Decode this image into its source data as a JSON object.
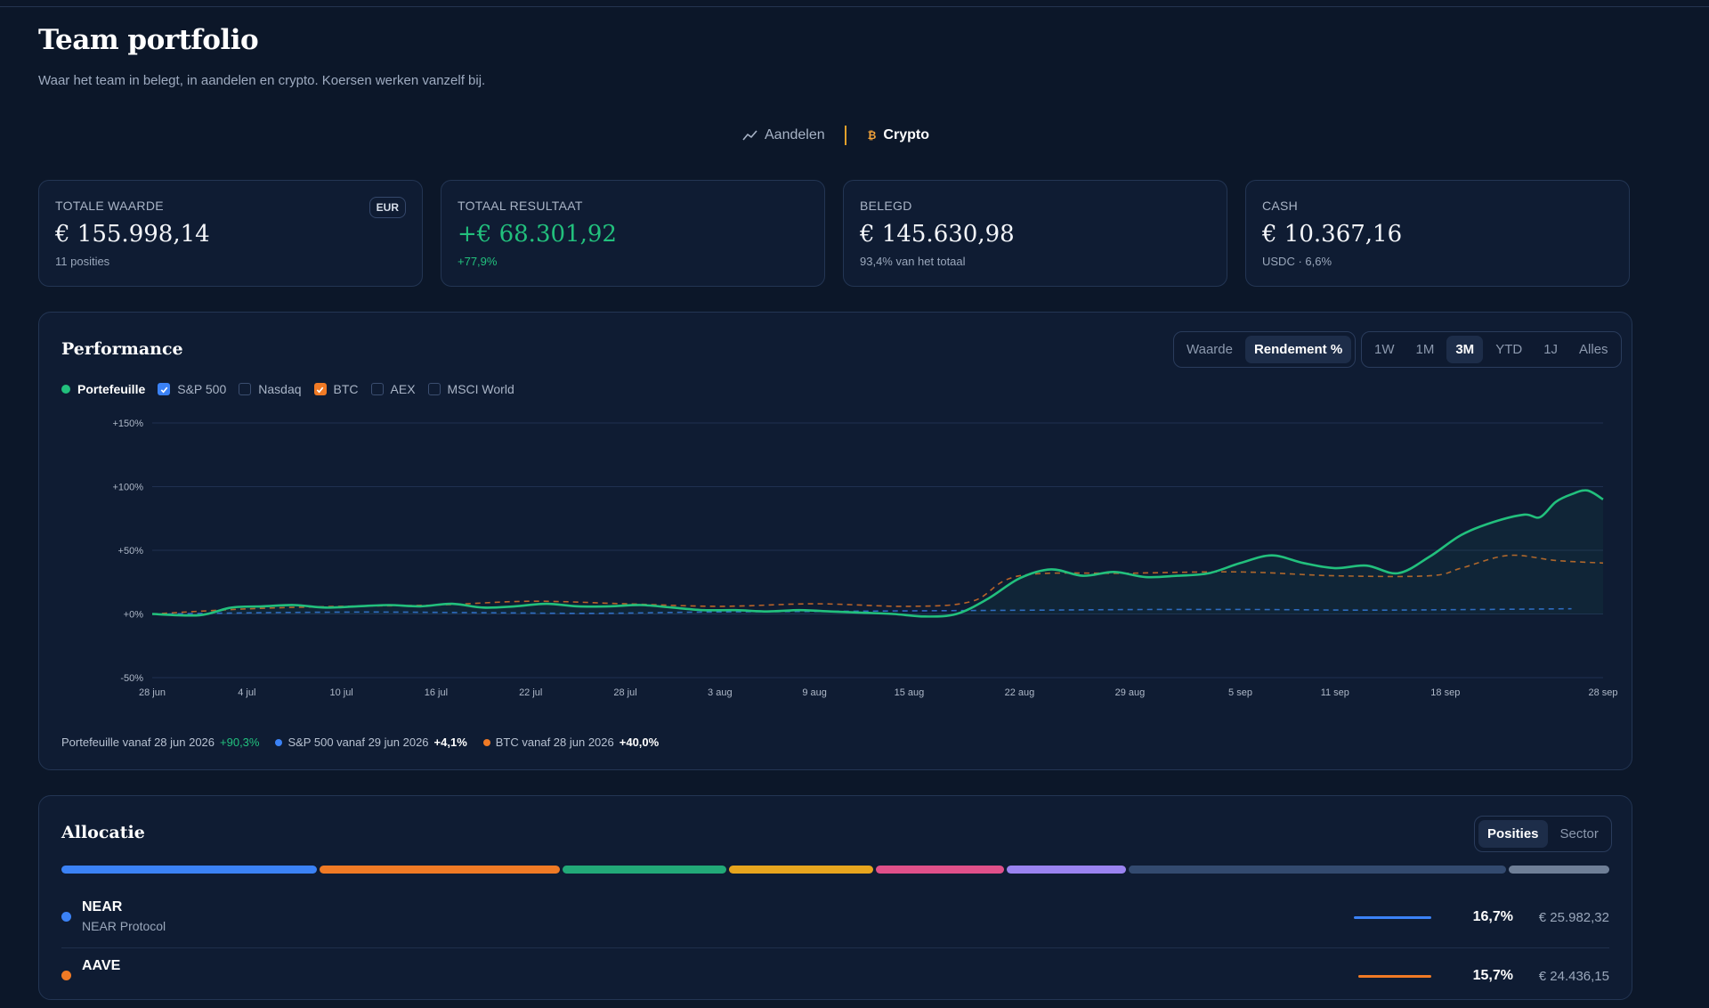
{
  "header": {
    "title": "Team portfolio",
    "subtitle": "Waar het team in belegt, in aandelen en crypto. Koersen werken vanzelf bij."
  },
  "switch": {
    "aandelen": "Aandelen",
    "crypto": "Crypto",
    "active": "Crypto"
  },
  "cards": [
    {
      "label": "TOTALE WAARDE",
      "value": "€ 155.998,14",
      "sub": "11 posities",
      "badge": "EUR"
    },
    {
      "label": "TOTAAL RESULTAAT",
      "value": "+€ 68.301,92",
      "sub": "+77,9%"
    },
    {
      "label": "BELEGD",
      "value": "€ 145.630,98",
      "sub": "93,4% van het totaal"
    },
    {
      "label": "CASH",
      "value": "€ 10.367,16",
      "sub": "USDC · 6,6%"
    }
  ],
  "performance": {
    "title": "Performance",
    "mode_options": [
      "Waarde",
      "Rendement %"
    ],
    "mode_active": "Rendement %",
    "range_options": [
      "1W",
      "1M",
      "3M",
      "YTD",
      "1J",
      "Alles"
    ],
    "range_active": "3M",
    "legend": [
      {
        "label": "Portefeuille",
        "type": "dot",
        "checked": true,
        "color": "#22c07d"
      },
      {
        "label": "S&P 500",
        "type": "checkbox",
        "checked": true,
        "color": "#3b82f6"
      },
      {
        "label": "Nasdaq",
        "type": "checkbox",
        "checked": false
      },
      {
        "label": "BTC",
        "type": "checkbox",
        "checked": true,
        "color": "#f07a25"
      },
      {
        "label": "AEX",
        "type": "checkbox",
        "checked": false
      },
      {
        "label": "MSCI World",
        "type": "checkbox",
        "checked": false
      }
    ],
    "footer": [
      {
        "text": "Portefeuille vanaf 28 jun 2026",
        "value": "+90,3%",
        "color": "#22c07d",
        "dot": false
      },
      {
        "text": "S&P 500 vanaf 29 jun 2026",
        "value": "+4,1%",
        "color": "#3b82f6",
        "dot": true
      },
      {
        "text": "BTC vanaf 28 jun 2026",
        "value": "+40,0%",
        "color": "#f07a25",
        "dot": true
      }
    ]
  },
  "chart_data": {
    "type": "line",
    "ylim": [
      -50,
      150
    ],
    "yticks": [
      -50,
      0,
      50,
      100,
      150
    ],
    "ytick_labels": [
      "-50%",
      "+0%",
      "+50%",
      "+100%",
      "+150%"
    ],
    "xlim": [
      "2026-06-28",
      "2026-09-28"
    ],
    "xtick_labels": [
      {
        "label": "28 jun",
        "date": "2026-06-28"
      },
      {
        "label": "4 jul",
        "date": "2026-07-04"
      },
      {
        "label": "10 jul",
        "date": "2026-07-10"
      },
      {
        "label": "16 jul",
        "date": "2026-07-16"
      },
      {
        "label": "22 jul",
        "date": "2026-07-22"
      },
      {
        "label": "28 jul",
        "date": "2026-07-28"
      },
      {
        "label": "3 aug",
        "date": "2026-08-03"
      },
      {
        "label": "9 aug",
        "date": "2026-08-09"
      },
      {
        "label": "15 aug",
        "date": "2026-08-15"
      },
      {
        "label": "22 aug",
        "date": "2026-08-22"
      },
      {
        "label": "29 aug",
        "date": "2026-08-29"
      },
      {
        "label": "5 sep",
        "date": "2026-09-05"
      },
      {
        "label": "11 sep",
        "date": "2026-09-11"
      },
      {
        "label": "18 sep",
        "date": "2026-09-18"
      },
      {
        "label": "28 sep",
        "date": "2026-09-28"
      }
    ],
    "grid": true,
    "series": [
      {
        "name": "Portefeuille",
        "color": "#22c07d",
        "style": "solid",
        "points": [
          [
            "2026-06-28",
            0
          ],
          [
            "2026-07-01",
            -1
          ],
          [
            "2026-07-03",
            5
          ],
          [
            "2026-07-05",
            6
          ],
          [
            "2026-07-07",
            7
          ],
          [
            "2026-07-09",
            5
          ],
          [
            "2026-07-11",
            6
          ],
          [
            "2026-07-13",
            7
          ],
          [
            "2026-07-15",
            6
          ],
          [
            "2026-07-17",
            8
          ],
          [
            "2026-07-19",
            5
          ],
          [
            "2026-07-21",
            6
          ],
          [
            "2026-07-23",
            8
          ],
          [
            "2026-07-25",
            6
          ],
          [
            "2026-07-27",
            6
          ],
          [
            "2026-07-29",
            7
          ],
          [
            "2026-07-31",
            5
          ],
          [
            "2026-08-02",
            3
          ],
          [
            "2026-08-04",
            3
          ],
          [
            "2026-08-06",
            2
          ],
          [
            "2026-08-08",
            3
          ],
          [
            "2026-08-10",
            2
          ],
          [
            "2026-08-12",
            1
          ],
          [
            "2026-08-14",
            0
          ],
          [
            "2026-08-16",
            -2
          ],
          [
            "2026-08-18",
            0
          ],
          [
            "2026-08-20",
            12
          ],
          [
            "2026-08-22",
            28
          ],
          [
            "2026-08-24",
            35
          ],
          [
            "2026-08-26",
            30
          ],
          [
            "2026-08-28",
            33
          ],
          [
            "2026-08-30",
            29
          ],
          [
            "2026-09-01",
            30
          ],
          [
            "2026-09-03",
            32
          ],
          [
            "2026-09-05",
            40
          ],
          [
            "2026-09-07",
            46
          ],
          [
            "2026-09-09",
            40
          ],
          [
            "2026-09-11",
            36
          ],
          [
            "2026-09-13",
            38
          ],
          [
            "2026-09-15",
            32
          ],
          [
            "2026-09-17",
            45
          ],
          [
            "2026-09-19",
            62
          ],
          [
            "2026-09-21",
            72
          ],
          [
            "2026-09-23",
            78
          ],
          [
            "2026-09-24",
            76
          ],
          [
            "2026-09-25",
            88
          ],
          [
            "2026-09-26",
            94
          ],
          [
            "2026-09-27",
            97
          ],
          [
            "2026-09-28",
            90
          ]
        ]
      },
      {
        "name": "S&P 500",
        "color": "#3b82f6",
        "style": "dashed",
        "points": [
          [
            "2026-06-29",
            0
          ],
          [
            "2026-07-05",
            1
          ],
          [
            "2026-07-12",
            1.5
          ],
          [
            "2026-07-19",
            1
          ],
          [
            "2026-07-26",
            0.5
          ],
          [
            "2026-08-02",
            1.5
          ],
          [
            "2026-08-09",
            2
          ],
          [
            "2026-08-16",
            2.5
          ],
          [
            "2026-08-23",
            3
          ],
          [
            "2026-08-30",
            3.5
          ],
          [
            "2026-09-06",
            3.5
          ],
          [
            "2026-09-13",
            3
          ],
          [
            "2026-09-20",
            3.5
          ],
          [
            "2026-09-26",
            4.1
          ]
        ]
      },
      {
        "name": "BTC",
        "color": "#f07a25",
        "style": "dashed",
        "points": [
          [
            "2026-06-28",
            0
          ],
          [
            "2026-07-04",
            4
          ],
          [
            "2026-07-10",
            6
          ],
          [
            "2026-07-16",
            7
          ],
          [
            "2026-07-22",
            10
          ],
          [
            "2026-07-28",
            8
          ],
          [
            "2026-08-03",
            6
          ],
          [
            "2026-08-09",
            8
          ],
          [
            "2026-08-15",
            6
          ],
          [
            "2026-08-19",
            10
          ],
          [
            "2026-08-22",
            30
          ],
          [
            "2026-08-29",
            32
          ],
          [
            "2026-09-05",
            33
          ],
          [
            "2026-09-11",
            30
          ],
          [
            "2026-09-17",
            30
          ],
          [
            "2026-09-19",
            36
          ],
          [
            "2026-09-22",
            46
          ],
          [
            "2026-09-25",
            42
          ],
          [
            "2026-09-28",
            40
          ]
        ]
      }
    ]
  },
  "allocation": {
    "title": "Allocatie",
    "options": [
      "Posities",
      "Sector"
    ],
    "active": "Posities",
    "segments": [
      {
        "pct": 16.7,
        "color": "#3b82f6"
      },
      {
        "pct": 15.7,
        "color": "#f07a25"
      },
      {
        "pct": 10.7,
        "color": "#22a978"
      },
      {
        "pct": 9.4,
        "color": "#e7a51e"
      },
      {
        "pct": 8.4,
        "color": "#e0508a"
      },
      {
        "pct": 7.8,
        "color": "#9a83f0"
      },
      {
        "pct": 24.6,
        "color": "#334a6f"
      },
      {
        "pct": 6.6,
        "color": "#6f7f97"
      }
    ],
    "rows": [
      {
        "symbol": "NEAR",
        "name": "NEAR Protocol",
        "pct": "16,7%",
        "amount": "€ 25.982,32",
        "color": "#3b82f6"
      },
      {
        "symbol": "AAVE",
        "name": "",
        "pct": "15,7%",
        "amount": "€ 24.436,15",
        "color": "#f07a25"
      }
    ]
  }
}
